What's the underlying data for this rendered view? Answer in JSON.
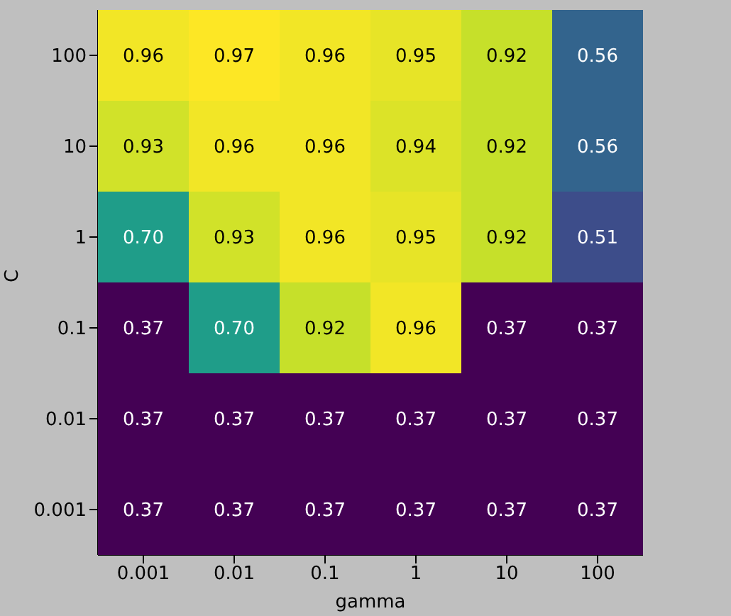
{
  "chart_data": {
    "type": "heatmap",
    "xlabel": "gamma",
    "ylabel": "C",
    "categories": [
      "0.001",
      "0.01",
      "0.1",
      "1",
      "10",
      "100"
    ],
    "y_categories": [
      "100",
      "10",
      "1",
      "0.1",
      "0.01",
      "0.001"
    ],
    "cells": [
      [
        0.96,
        0.97,
        0.96,
        0.95,
        0.92,
        0.56
      ],
      [
        0.93,
        0.96,
        0.96,
        0.94,
        0.92,
        0.56
      ],
      [
        0.7,
        0.93,
        0.96,
        0.95,
        0.92,
        0.51
      ],
      [
        0.37,
        0.7,
        0.92,
        0.96,
        0.37,
        0.37
      ],
      [
        0.37,
        0.37,
        0.37,
        0.37,
        0.37,
        0.37
      ],
      [
        0.37,
        0.37,
        0.37,
        0.37,
        0.37,
        0.37
      ]
    ],
    "cell_labels": [
      [
        "0.96",
        "0.97",
        "0.96",
        "0.95",
        "0.92",
        "0.56"
      ],
      [
        "0.93",
        "0.96",
        "0.96",
        "0.94",
        "0.92",
        "0.56"
      ],
      [
        "0.70",
        "0.93",
        "0.96",
        "0.95",
        "0.92",
        "0.51"
      ],
      [
        "0.37",
        "0.70",
        "0.92",
        "0.96",
        "0.37",
        "0.37"
      ],
      [
        "0.37",
        "0.37",
        "0.37",
        "0.37",
        "0.37",
        "0.37"
      ],
      [
        "0.37",
        "0.37",
        "0.37",
        "0.37",
        "0.37",
        "0.37"
      ]
    ]
  }
}
